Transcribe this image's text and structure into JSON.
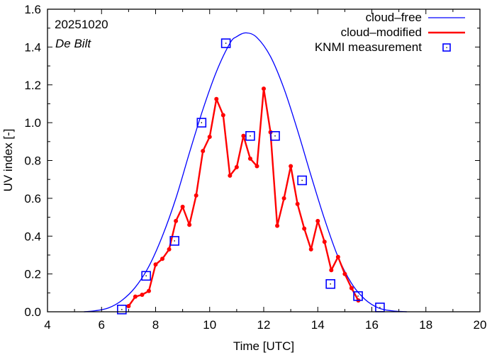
{
  "chart_data": {
    "type": "line",
    "title": "",
    "annotations": [
      "20251020",
      "De Bilt"
    ],
    "xlabel": "Time  [UTC]",
    "ylabel": "UV index  [-]",
    "xlim": [
      4,
      20
    ],
    "ylim": [
      0,
      1.6
    ],
    "xticks": [
      4,
      6,
      8,
      10,
      12,
      14,
      16,
      18,
      20
    ],
    "xtick_labels": [
      "4",
      "6",
      "8",
      "10",
      "12",
      "14",
      "16",
      "18",
      "20"
    ],
    "yticks": [
      0,
      0.2,
      0.4,
      0.6,
      0.8,
      1.0,
      1.2,
      1.4,
      1.6
    ],
    "ytick_labels": [
      "0.0",
      "0.2",
      "0.4",
      "0.6",
      "0.8",
      "1.0",
      "1.2",
      "1.4",
      "1.6"
    ],
    "grid": false,
    "legend_position": "top-right",
    "series": [
      {
        "name": "cloud–free",
        "color": "#0000ff",
        "style": "line",
        "x": [
          5.35,
          5.75,
          6.25,
          6.75,
          7.25,
          7.75,
          8.25,
          8.75,
          9.25,
          9.75,
          10.25,
          10.75,
          11.0,
          11.35,
          11.75,
          12.25,
          12.75,
          13.25,
          13.75,
          14.25,
          14.75,
          15.25,
          15.75,
          16.25,
          16.75,
          17.3
        ],
        "y": [
          0.0,
          0.005,
          0.02,
          0.06,
          0.13,
          0.24,
          0.4,
          0.6,
          0.84,
          1.07,
          1.27,
          1.42,
          1.455,
          1.475,
          1.45,
          1.35,
          1.18,
          0.96,
          0.72,
          0.49,
          0.29,
          0.15,
          0.065,
          0.02,
          0.005,
          0.0
        ]
      },
      {
        "name": "cloud–modified",
        "color": "#ff0000",
        "style": "line-points",
        "x": [
          7.0,
          7.25,
          7.5,
          7.75,
          8.0,
          8.25,
          8.5,
          8.75,
          9.0,
          9.25,
          9.5,
          9.75,
          10.0,
          10.25,
          10.5,
          10.75,
          11.0,
          11.25,
          11.5,
          11.75,
          12.0,
          12.25,
          12.5,
          12.75,
          13.0,
          13.25,
          13.5,
          13.75,
          14.0,
          14.25,
          14.5,
          14.75,
          15.0,
          15.25,
          15.5
        ],
        "y": [
          0.03,
          0.08,
          0.09,
          0.11,
          0.25,
          0.28,
          0.33,
          0.48,
          0.555,
          0.46,
          0.615,
          0.85,
          0.925,
          1.125,
          1.04,
          0.72,
          0.765,
          0.93,
          0.81,
          0.77,
          1.18,
          0.95,
          0.455,
          0.6,
          0.77,
          0.57,
          0.44,
          0.33,
          0.48,
          0.37,
          0.22,
          0.29,
          0.2,
          0.125,
          0.06
        ]
      },
      {
        "name": "KNMI measurement",
        "color": "#0000ff",
        "style": "square-markers",
        "x": [
          6.75,
          7.65,
          8.7,
          9.7,
          10.6,
          11.5,
          12.42,
          13.42,
          14.47,
          15.49,
          16.3
        ],
        "y": [
          0.012,
          0.19,
          0.375,
          1.0,
          1.42,
          0.93,
          0.93,
          0.695,
          0.147,
          0.083,
          0.023
        ]
      }
    ]
  }
}
